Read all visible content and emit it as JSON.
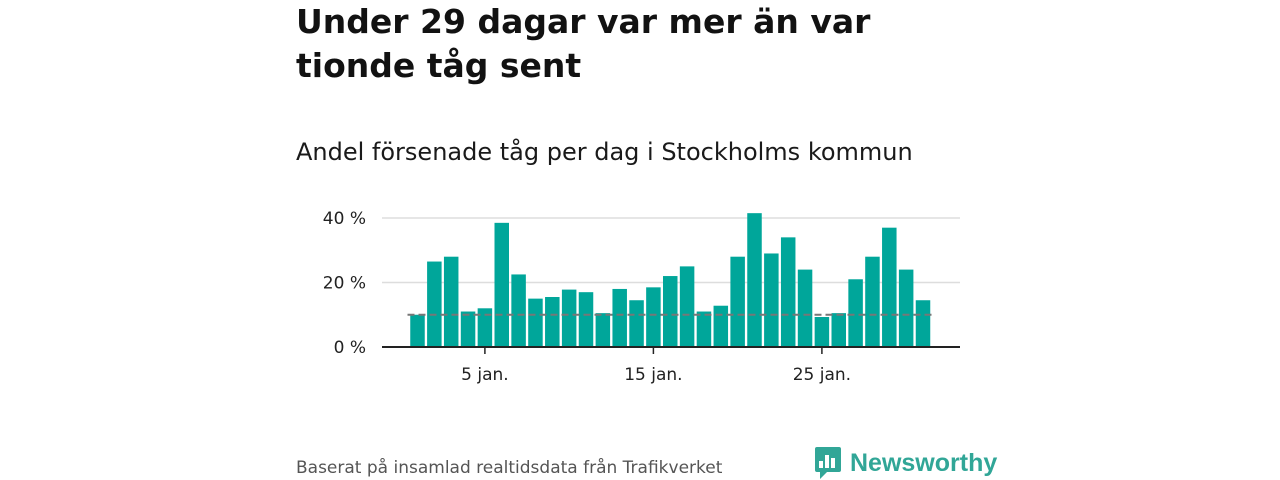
{
  "header": {
    "title": "Under 29 dagar var mer än var tionde tåg sent",
    "subtitle": "Andel försenade tåg per dag i Stockholms kommun"
  },
  "footer": {
    "source": "Baserat på insamlad realtidsdata från Trafikverket",
    "brand": "Newsworthy"
  },
  "colors": {
    "bar": "#00a69a",
    "reference_line": "#777777",
    "grid": "#dddddd",
    "brand": "#31a697"
  },
  "chart_data": {
    "type": "bar",
    "x": [
      1,
      2,
      3,
      4,
      5,
      6,
      7,
      8,
      9,
      10,
      11,
      12,
      13,
      14,
      15,
      16,
      17,
      18,
      19,
      20,
      21,
      22,
      23,
      24,
      25,
      26,
      27,
      28,
      29,
      30,
      31
    ],
    "values": [
      10,
      26.5,
      28,
      11,
      12,
      38.5,
      22.5,
      15,
      15.5,
      17.8,
      17,
      10.5,
      18,
      14.5,
      18.5,
      22,
      25,
      11,
      12.8,
      28,
      41.5,
      29,
      34,
      24,
      9.3,
      10.5,
      21,
      28,
      37,
      24,
      14.5
    ],
    "reference_value": 10,
    "x_ticks": [
      {
        "x": 5,
        "label": "5 jan."
      },
      {
        "x": 15,
        "label": "15 jan."
      },
      {
        "x": 25,
        "label": "25 jan."
      }
    ],
    "y_ticks": [
      {
        "value": 0,
        "label": "0 %"
      },
      {
        "value": 20,
        "label": "20 %"
      },
      {
        "value": 40,
        "label": "40 %"
      }
    ],
    "ylim": [
      0,
      40
    ],
    "grid": true,
    "xlabel": "",
    "ylabel": ""
  }
}
